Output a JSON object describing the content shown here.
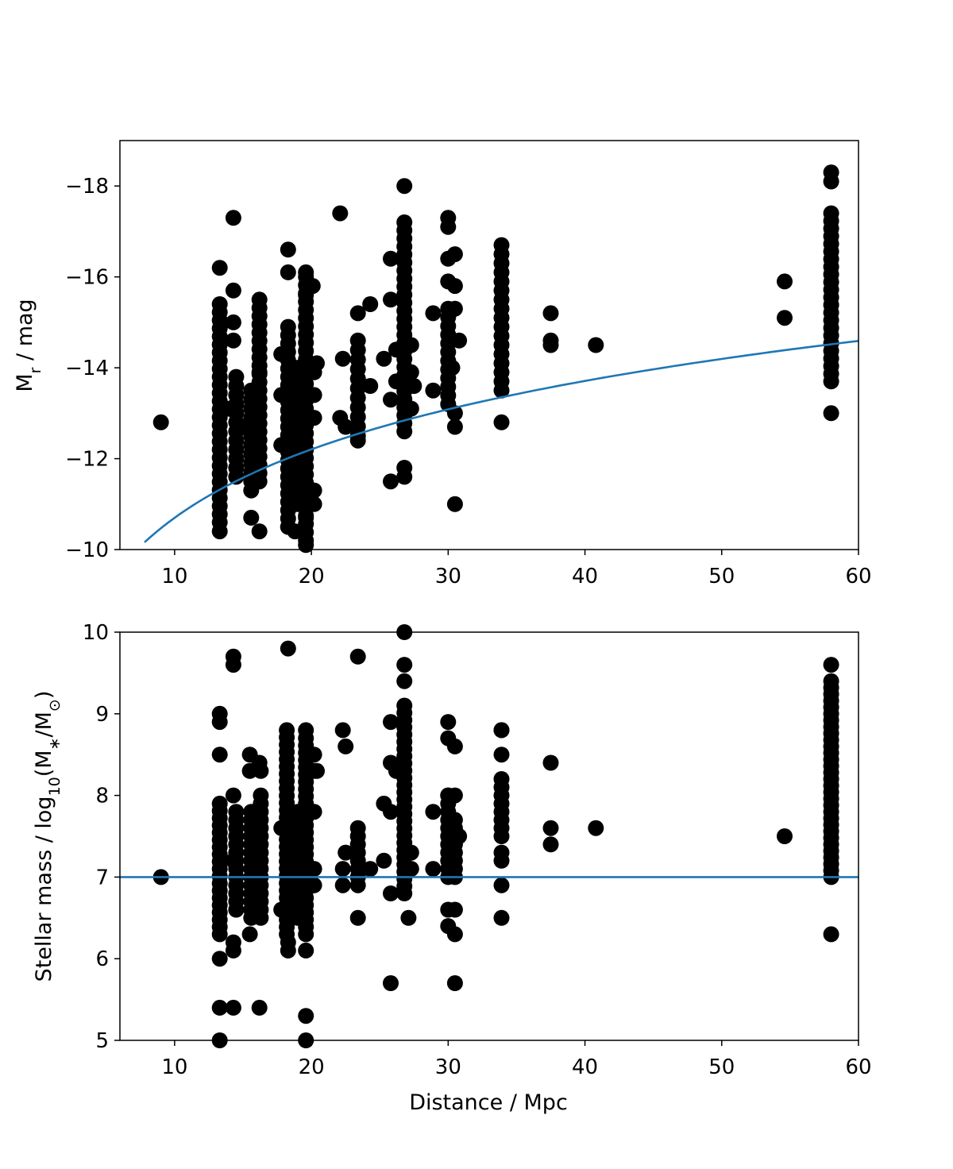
{
  "colors": {
    "points": "#000000",
    "model_line": "#1f77b4"
  },
  "chart_data": [
    {
      "type": "scatter",
      "ylabel": {
        "main": "M",
        "sub": "r",
        "rest": " / mag"
      },
      "xlim": [
        6,
        60
      ],
      "ylim": [
        -10,
        -19
      ],
      "y_inverted": true,
      "x_ticks": [
        10,
        20,
        30,
        40,
        50,
        60
      ],
      "y_ticks": [
        -18,
        -16,
        -14,
        -12,
        -10
      ],
      "y_tick_labels": [
        "−18",
        "−16",
        "−14",
        "−12",
        "−10"
      ],
      "model_line": {
        "form": "M_lim = 19.3 - 5*log10(d_pc)",
        "m_lim": 19.3,
        "start_x": 7.8,
        "end_x": 60
      },
      "columns": [
        {
          "x": 13.3,
          "y_min": -10.6,
          "y_max": -15.4,
          "step": 0.18
        },
        {
          "x": 14.5,
          "y_min": -11.6,
          "y_max": -13.8,
          "step": 0.2
        },
        {
          "x": 15.6,
          "y_min": -11.3,
          "y_max": -13.5,
          "step": 0.2
        },
        {
          "x": 16.2,
          "y_min": -11.5,
          "y_max": -15.5,
          "step": 0.18
        },
        {
          "x": 18.3,
          "y_min": -10.5,
          "y_max": -14.9,
          "step": 0.18
        },
        {
          "x": 19.0,
          "y_min": -11.0,
          "y_max": -14.0,
          "step": 0.2
        },
        {
          "x": 19.6,
          "y_min": -10.2,
          "y_max": -16.0,
          "step": 0.18
        },
        {
          "x": 23.4,
          "y_min": -12.5,
          "y_max": -14.6,
          "step": 0.2
        },
        {
          "x": 26.8,
          "y_min": -12.6,
          "y_max": -17.2,
          "step": 0.18
        },
        {
          "x": 30.0,
          "y_min": -13.2,
          "y_max": -15.3,
          "step": 0.2
        },
        {
          "x": 33.9,
          "y_min": -13.5,
          "y_max": -16.7,
          "step": 0.2
        },
        {
          "x": 58.0,
          "y_min": -13.7,
          "y_max": -17.4,
          "step": 0.17
        }
      ],
      "points": [
        [
          9.0,
          -12.8
        ],
        [
          13.3,
          -16.2
        ],
        [
          13.3,
          -10.4
        ],
        [
          14.3,
          -17.3
        ],
        [
          14.3,
          -15.7
        ],
        [
          14.3,
          -15.0
        ],
        [
          14.3,
          -14.6
        ],
        [
          14.0,
          -13.1
        ],
        [
          14.8,
          -12.7
        ],
        [
          15.6,
          -10.7
        ],
        [
          16.2,
          -10.4
        ],
        [
          16.2,
          -13.9
        ],
        [
          18.3,
          -16.6
        ],
        [
          18.3,
          -16.1
        ],
        [
          17.8,
          -14.3
        ],
        [
          17.8,
          -13.4
        ],
        [
          17.8,
          -12.3
        ],
        [
          18.3,
          -10.5
        ],
        [
          18.8,
          -10.4
        ],
        [
          19.6,
          -16.1
        ],
        [
          20.1,
          -15.8
        ],
        [
          19.6,
          -15.6
        ],
        [
          19.6,
          -10.7
        ],
        [
          19.6,
          -10.1
        ],
        [
          20.2,
          -11.3
        ],
        [
          20.2,
          -11.0
        ],
        [
          20.2,
          -13.4
        ],
        [
          20.2,
          -12.9
        ],
        [
          20.4,
          -14.1
        ],
        [
          20.2,
          -13.9
        ],
        [
          22.1,
          -17.4
        ],
        [
          22.3,
          -14.2
        ],
        [
          22.1,
          -12.9
        ],
        [
          22.5,
          -12.7
        ],
        [
          23.4,
          -15.2
        ],
        [
          23.4,
          -12.4
        ],
        [
          24.3,
          -15.4
        ],
        [
          24.3,
          -13.6
        ],
        [
          25.3,
          -14.2
        ],
        [
          25.8,
          -16.4
        ],
        [
          25.8,
          -15.5
        ],
        [
          25.8,
          -11.5
        ],
        [
          25.8,
          -13.3
        ],
        [
          26.2,
          -14.4
        ],
        [
          26.2,
          -13.7
        ],
        [
          26.8,
          -18.0
        ],
        [
          26.8,
          -11.8
        ],
        [
          26.8,
          -11.6
        ],
        [
          27.3,
          -14.5
        ],
        [
          27.3,
          -13.9
        ],
        [
          27.3,
          -13.1
        ],
        [
          27.5,
          -13.6
        ],
        [
          28.9,
          -15.2
        ],
        [
          28.9,
          -13.5
        ],
        [
          30.0,
          -17.3
        ],
        [
          30.0,
          -17.1
        ],
        [
          30.0,
          -16.4
        ],
        [
          30.0,
          -15.9
        ],
        [
          30.5,
          -16.5
        ],
        [
          30.5,
          -15.8
        ],
        [
          30.5,
          -15.3
        ],
        [
          30.5,
          -13.0
        ],
        [
          30.5,
          -12.7
        ],
        [
          30.5,
          -11.0
        ],
        [
          30.8,
          -14.6
        ],
        [
          30.3,
          -14.0
        ],
        [
          33.9,
          -12.8
        ],
        [
          37.5,
          -15.2
        ],
        [
          37.5,
          -14.6
        ],
        [
          37.5,
          -14.5
        ],
        [
          40.8,
          -14.5
        ],
        [
          54.6,
          -15.9
        ],
        [
          54.6,
          -15.1
        ],
        [
          58.0,
          -18.3
        ],
        [
          58.0,
          -18.1
        ],
        [
          58.0,
          -13.0
        ]
      ]
    },
    {
      "type": "scatter",
      "xlabel": "Distance / Mpc",
      "ylabel": {
        "main": "Stellar mass / log",
        "sub": "10",
        "mid": "(M",
        "sub2": "∗",
        "mid2": "/M",
        "sub3": "⊙",
        "rest": ")"
      },
      "xlim": [
        6,
        60
      ],
      "ylim": [
        5,
        10
      ],
      "x_ticks": [
        10,
        20,
        30,
        40,
        50,
        60
      ],
      "y_ticks": [
        5,
        6,
        7,
        8,
        9,
        10
      ],
      "y_tick_labels": [
        "5",
        "6",
        "7",
        "8",
        "9",
        "10"
      ],
      "threshold_line": {
        "y": 7
      },
      "columns": [
        {
          "x": 13.3,
          "y_min": 6.3,
          "y_max": 7.9,
          "step": 0.09
        },
        {
          "x": 14.5,
          "y_min": 6.6,
          "y_max": 7.8,
          "step": 0.1
        },
        {
          "x": 15.6,
          "y_min": 6.5,
          "y_max": 7.8,
          "step": 0.1
        },
        {
          "x": 16.3,
          "y_min": 6.5,
          "y_max": 8.0,
          "step": 0.1
        },
        {
          "x": 18.2,
          "y_min": 6.3,
          "y_max": 8.8,
          "step": 0.09
        },
        {
          "x": 19.0,
          "y_min": 6.5,
          "y_max": 7.8,
          "step": 0.1
        },
        {
          "x": 19.6,
          "y_min": 6.3,
          "y_max": 8.7,
          "step": 0.09
        },
        {
          "x": 23.4,
          "y_min": 6.9,
          "y_max": 7.6,
          "step": 0.1
        },
        {
          "x": 26.8,
          "y_min": 6.8,
          "y_max": 9.1,
          "step": 0.09
        },
        {
          "x": 30.0,
          "y_min": 7.0,
          "y_max": 8.0,
          "step": 0.1
        },
        {
          "x": 30.5,
          "y_min": 7.0,
          "y_max": 7.7,
          "step": 0.1
        },
        {
          "x": 33.9,
          "y_min": 7.5,
          "y_max": 8.2,
          "step": 0.1
        },
        {
          "x": 58.0,
          "y_min": 7.0,
          "y_max": 9.4,
          "step": 0.08
        }
      ],
      "points": [
        [
          9.0,
          7.0
        ],
        [
          13.3,
          9.0
        ],
        [
          13.3,
          8.9
        ],
        [
          13.3,
          8.5
        ],
        [
          13.3,
          6.0
        ],
        [
          13.3,
          5.4
        ],
        [
          13.3,
          5.0
        ],
        [
          14.3,
          9.7
        ],
        [
          14.3,
          9.6
        ],
        [
          14.3,
          8.0
        ],
        [
          14.3,
          6.2
        ],
        [
          14.3,
          6.1
        ],
        [
          14.3,
          5.4
        ],
        [
          14.3,
          7.2
        ],
        [
          15.5,
          8.5
        ],
        [
          15.5,
          8.3
        ],
        [
          16.2,
          8.4
        ],
        [
          16.3,
          8.3
        ],
        [
          15.5,
          6.3
        ],
        [
          16.2,
          5.4
        ],
        [
          18.3,
          9.8
        ],
        [
          18.3,
          6.2
        ],
        [
          18.3,
          6.1
        ],
        [
          17.8,
          7.6
        ],
        [
          17.8,
          6.6
        ],
        [
          19.6,
          8.8
        ],
        [
          19.6,
          6.1
        ],
        [
          19.6,
          5.3
        ],
        [
          19.6,
          5.0
        ],
        [
          20.2,
          8.5
        ],
        [
          20.2,
          8.3
        ],
        [
          20.2,
          7.8
        ],
        [
          20.2,
          7.1
        ],
        [
          20.2,
          6.9
        ],
        [
          20.4,
          8.3
        ],
        [
          22.3,
          8.8
        ],
        [
          22.5,
          8.6
        ],
        [
          22.3,
          7.1
        ],
        [
          22.3,
          6.9
        ],
        [
          22.5,
          7.3
        ],
        [
          23.4,
          9.7
        ],
        [
          23.4,
          6.5
        ],
        [
          24.3,
          7.1
        ],
        [
          25.3,
          7.9
        ],
        [
          25.3,
          7.2
        ],
        [
          25.8,
          8.9
        ],
        [
          25.8,
          8.4
        ],
        [
          25.8,
          7.8
        ],
        [
          25.8,
          6.8
        ],
        [
          25.8,
          5.7
        ],
        [
          26.2,
          8.3
        ],
        [
          26.8,
          10.0
        ],
        [
          26.8,
          9.6
        ],
        [
          26.8,
          9.4
        ],
        [
          27.1,
          6.5
        ],
        [
          27.3,
          7.3
        ],
        [
          27.3,
          7.1
        ],
        [
          28.9,
          7.8
        ],
        [
          28.9,
          7.1
        ],
        [
          30.0,
          8.9
        ],
        [
          30.0,
          8.7
        ],
        [
          30.0,
          8.0
        ],
        [
          30.0,
          6.6
        ],
        [
          30.0,
          6.4
        ],
        [
          30.5,
          8.6
        ],
        [
          30.5,
          8.0
        ],
        [
          30.5,
          6.6
        ],
        [
          30.5,
          6.3
        ],
        [
          30.5,
          5.7
        ],
        [
          30.8,
          7.5
        ],
        [
          33.9,
          8.8
        ],
        [
          33.9,
          8.8
        ],
        [
          33.9,
          8.5
        ],
        [
          33.9,
          7.3
        ],
        [
          33.9,
          7.2
        ],
        [
          33.9,
          6.9
        ],
        [
          33.9,
          6.5
        ],
        [
          37.5,
          8.4
        ],
        [
          37.5,
          7.6
        ],
        [
          37.5,
          7.4
        ],
        [
          40.8,
          7.6
        ],
        [
          54.6,
          7.5
        ],
        [
          58.0,
          9.6
        ],
        [
          58.0,
          6.3
        ]
      ]
    }
  ]
}
